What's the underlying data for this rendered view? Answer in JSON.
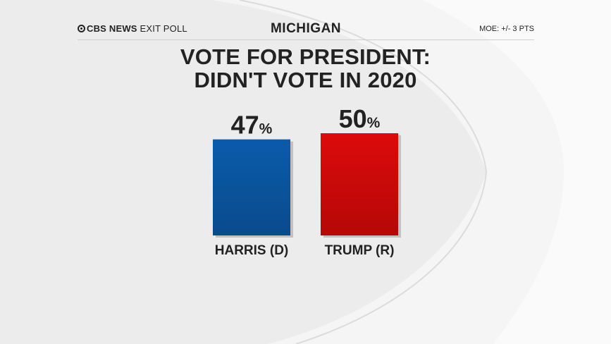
{
  "header": {
    "brand_name": "CBS NEWS",
    "brand_suffix": "EXIT POLL",
    "state": "MICHIGAN",
    "moe": "MOE: +/- 3 PTS"
  },
  "chart_data": {
    "type": "bar",
    "title_line1": "VOTE FOR PRESIDENT:",
    "title_line2": "DIDN'T VOTE IN 2020",
    "categories": [
      "HARRIS (D)",
      "TRUMP (R)"
    ],
    "values": [
      47,
      50
    ],
    "value_suffix": "%",
    "colors": [
      "#0b5bab",
      "#dd0a0a"
    ],
    "ylim": [
      0,
      100
    ],
    "grid": false
  }
}
